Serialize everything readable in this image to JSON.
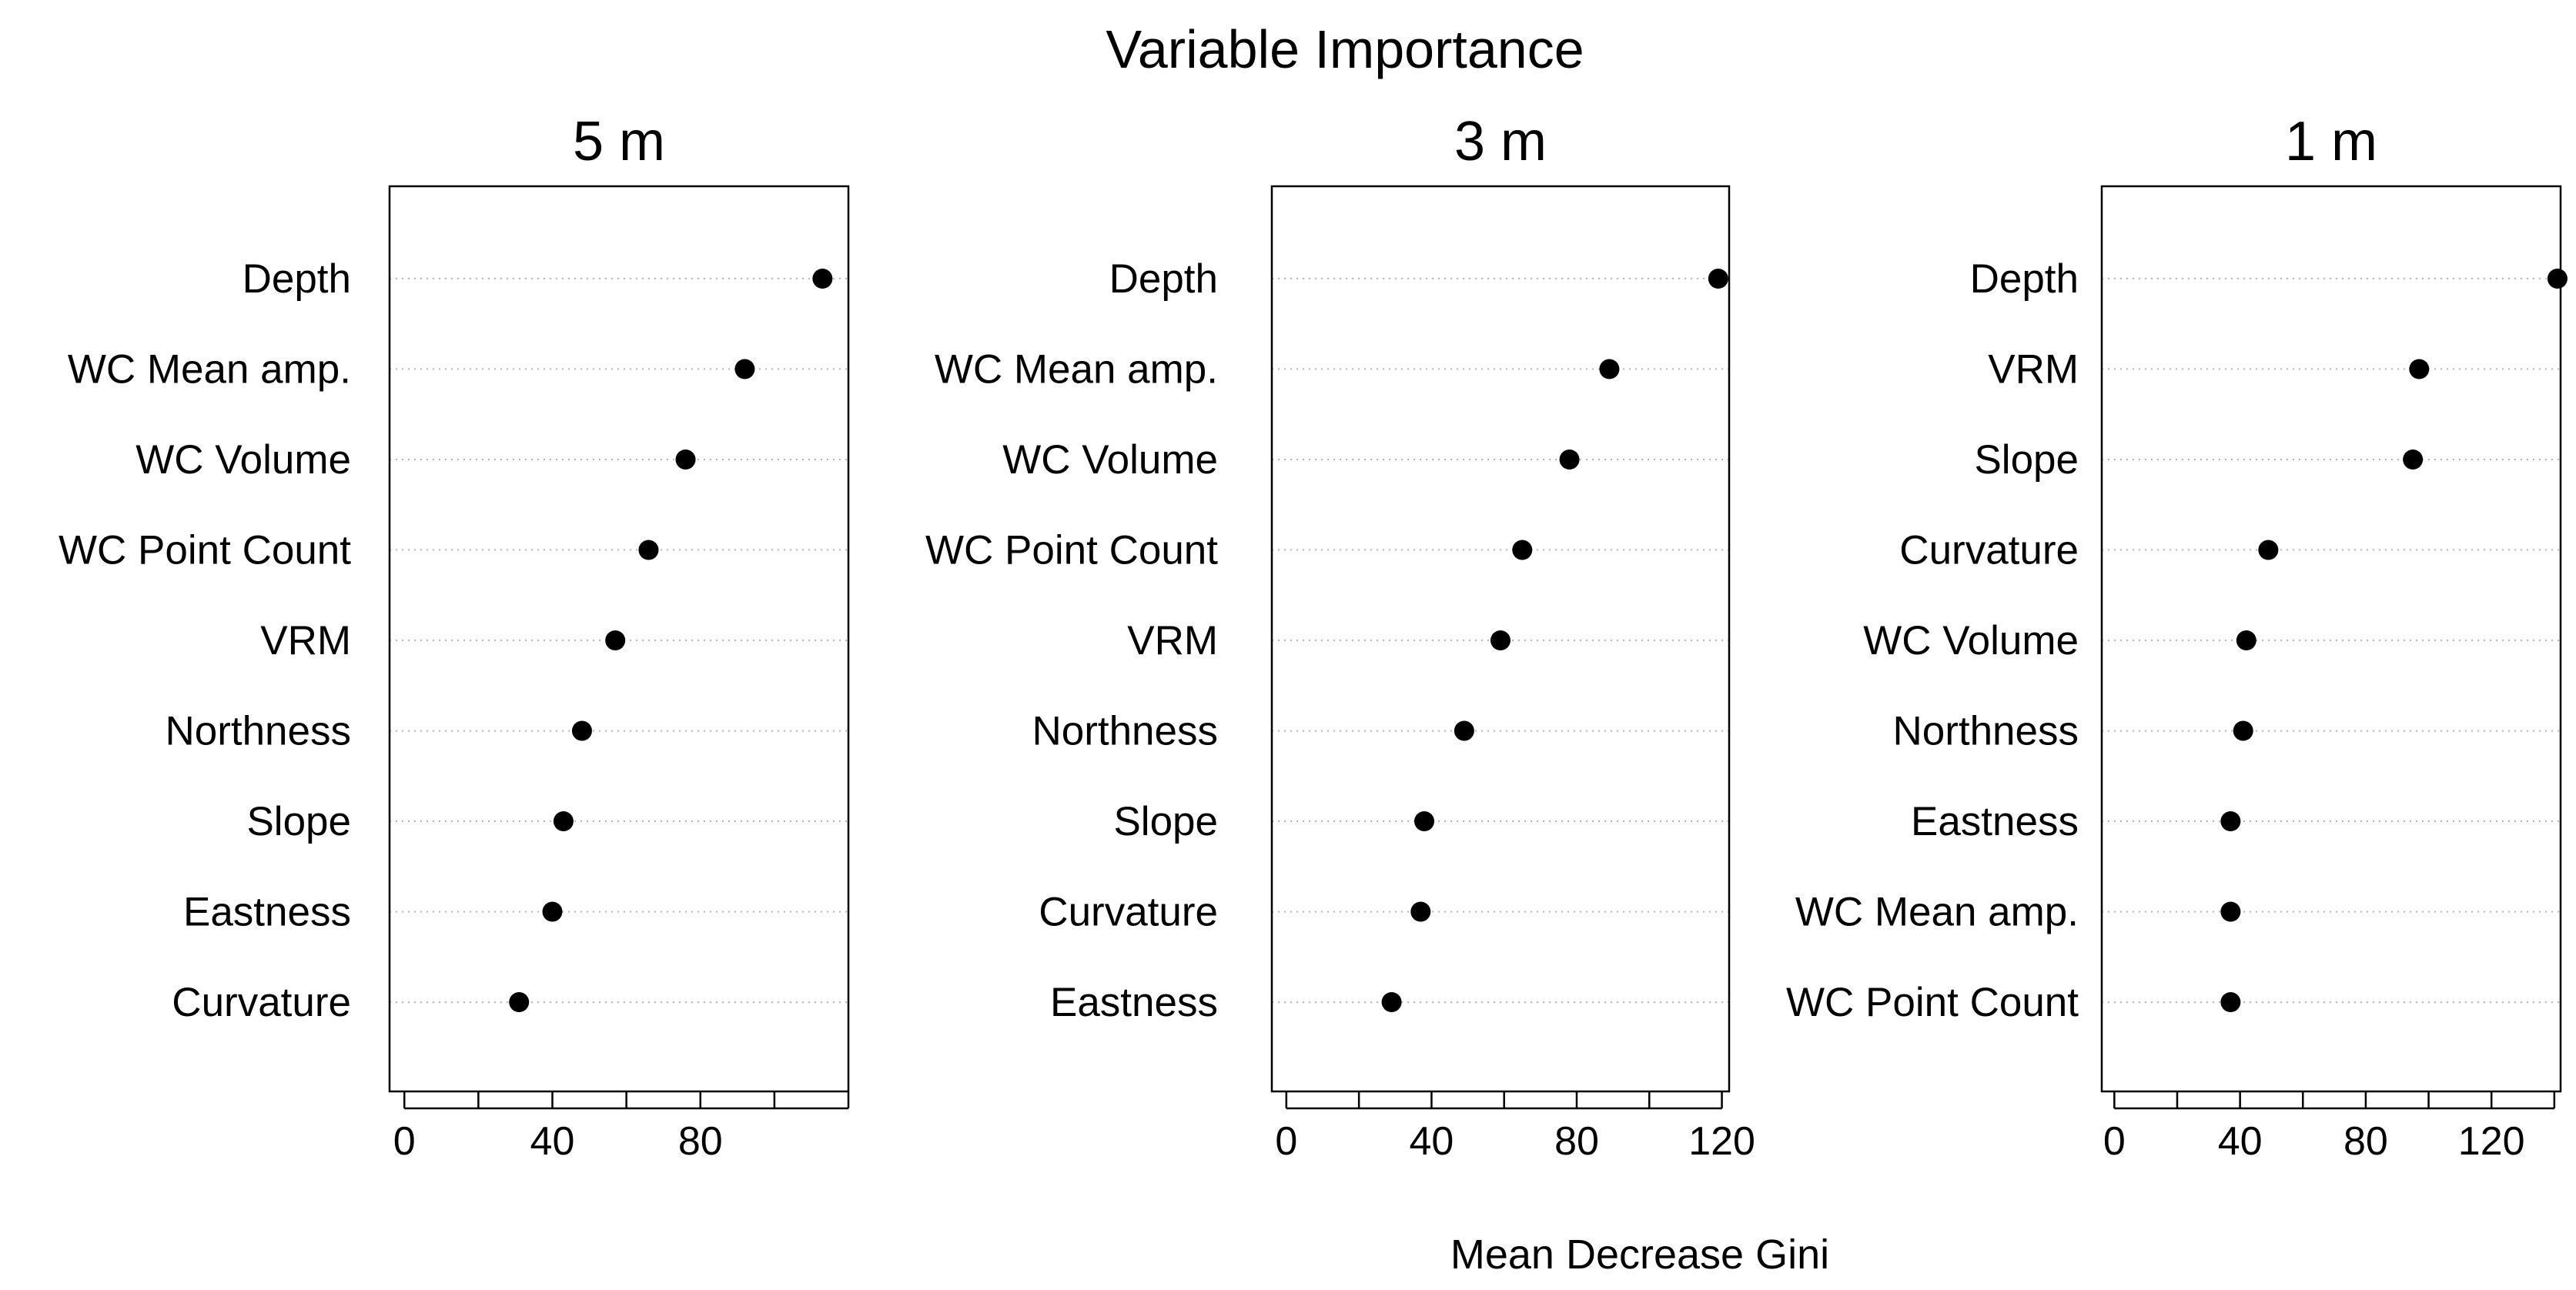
{
  "title": "Variable Importance",
  "xlabel": "Mean Decrease Gini",
  "chart_data": [
    {
      "type": "scatter",
      "subtitle": "5 m",
      "categories": [
        "Depth",
        "WC Mean amp.",
        "WC Volume",
        "WC Point Count",
        "VRM",
        "Northness",
        "Slope",
        "Eastness",
        "Curvature"
      ],
      "values": [
        113,
        92,
        76,
        66,
        57,
        48,
        43,
        40,
        31
      ],
      "xlabel": "Mean Decrease Gini",
      "xticks": [
        0,
        40,
        80
      ],
      "xlim": [
        -4,
        120
      ],
      "grid": "horizontal dotted"
    },
    {
      "type": "scatter",
      "subtitle": "3 m",
      "categories": [
        "Depth",
        "WC Mean amp.",
        "WC Volume",
        "WC Point Count",
        "VRM",
        "Northness",
        "Slope",
        "Curvature",
        "Eastness"
      ],
      "values": [
        119,
        89,
        78,
        65,
        59,
        49,
        38,
        37,
        29
      ],
      "xlabel": "Mean Decrease Gini",
      "xticks": [
        0,
        40,
        80,
        120
      ],
      "xlim": [
        -4,
        122
      ],
      "grid": "horizontal dotted"
    },
    {
      "type": "scatter",
      "subtitle": "1 m",
      "categories": [
        "Depth",
        "VRM",
        "Slope",
        "Curvature",
        "WC Volume",
        "Northness",
        "Eastness",
        "WC Mean amp.",
        "WC Point Count"
      ],
      "values": [
        141,
        97,
        95,
        49,
        42,
        41,
        37,
        37,
        37
      ],
      "xlabel": "Mean Decrease Gini",
      "xticks": [
        0,
        40,
        80,
        120
      ],
      "xlim": [
        -4,
        142
      ],
      "grid": "horizontal dotted"
    }
  ]
}
